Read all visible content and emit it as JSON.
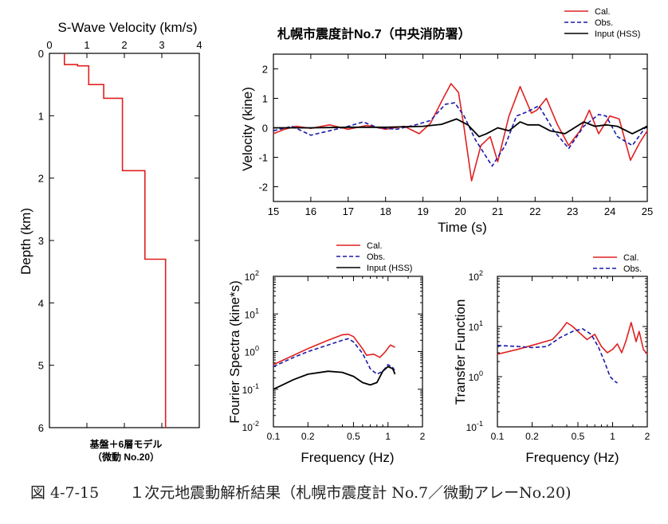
{
  "caption": "図 4-7-15　　１次元地震動解析結果（札幌市震度計 No.7／微動アレーNo.20)",
  "colors": {
    "cal": "#e02020",
    "obs": "#1a1aa8",
    "input": "#000000"
  },
  "chart_data": [
    {
      "id": "profile",
      "type": "line",
      "title": "S-Wave Velocity (km/s)",
      "xlabel": "",
      "ylabel": "Depth (km)",
      "xlim": [
        0,
        4
      ],
      "ylim": [
        0,
        6
      ],
      "xticks": [
        0,
        1,
        2,
        3,
        4
      ],
      "yticks": [
        0,
        1,
        2,
        3,
        4,
        5,
        6
      ],
      "note_line1": "基盤＋6層モデル",
      "note_line2": "（微動 No.20）",
      "series": [
        {
          "key": "profile",
          "points": [
            [
              0.4,
              0
            ],
            [
              0.4,
              0.18
            ],
            [
              0.75,
              0.18
            ],
            [
              0.75,
              0.2
            ],
            [
              1.05,
              0.2
            ],
            [
              1.05,
              0.5
            ],
            [
              1.45,
              0.5
            ],
            [
              1.45,
              0.72
            ],
            [
              1.95,
              0.72
            ],
            [
              1.95,
              1.88
            ],
            [
              2.55,
              1.88
            ],
            [
              2.55,
              3.3
            ],
            [
              3.1,
              3.3
            ],
            [
              3.1,
              6.0
            ]
          ]
        }
      ]
    },
    {
      "id": "velocity",
      "type": "line",
      "title": "札幌市震度計No.7（中央消防署）",
      "xlabel": "Time (s)",
      "ylabel": "Velocity (kine)",
      "xlim": [
        15,
        25
      ],
      "ylim": [
        -2.5,
        2.5
      ],
      "xticks": [
        15,
        16,
        17,
        18,
        19,
        20,
        21,
        22,
        23,
        24,
        25
      ],
      "yticks": [
        -2,
        -1,
        0,
        1,
        2
      ],
      "legend": [
        "Cal.",
        "Obs.",
        "Input (HSS)"
      ],
      "series": [
        {
          "key": "cal",
          "name": "Cal.",
          "points": [
            [
              15,
              -0.2
            ],
            [
              15.3,
              -0.05
            ],
            [
              15.6,
              0.05
            ],
            [
              16,
              -0.02
            ],
            [
              16.5,
              0.1
            ],
            [
              17,
              -0.05
            ],
            [
              17.5,
              0.08
            ],
            [
              18,
              -0.05
            ],
            [
              18.5,
              0.05
            ],
            [
              18.9,
              -0.2
            ],
            [
              19.2,
              0.15
            ],
            [
              19.5,
              0.9
            ],
            [
              19.75,
              1.5
            ],
            [
              19.95,
              1.2
            ],
            [
              20.1,
              0
            ],
            [
              20.3,
              -1.8
            ],
            [
              20.55,
              -0.6
            ],
            [
              20.8,
              -0.3
            ],
            [
              21,
              -1.15
            ],
            [
              21.3,
              0.4
            ],
            [
              21.6,
              1.4
            ],
            [
              21.9,
              0.5
            ],
            [
              22.05,
              0.6
            ],
            [
              22.3,
              1.0
            ],
            [
              22.6,
              0.1
            ],
            [
              22.9,
              -0.6
            ],
            [
              23.2,
              -0.1
            ],
            [
              23.45,
              0.6
            ],
            [
              23.7,
              -0.2
            ],
            [
              24.0,
              0.4
            ],
            [
              24.25,
              0.3
            ],
            [
              24.55,
              -1.1
            ],
            [
              24.8,
              -0.5
            ],
            [
              25,
              -0.1
            ]
          ]
        },
        {
          "key": "obs",
          "name": "Obs.",
          "points": [
            [
              15,
              -0.1
            ],
            [
              15.5,
              0.05
            ],
            [
              16,
              -0.25
            ],
            [
              16.5,
              -0.1
            ],
            [
              17.0,
              0.05
            ],
            [
              17.4,
              0.2
            ],
            [
              17.8,
              0.0
            ],
            [
              18.3,
              -0.05
            ],
            [
              18.8,
              0.1
            ],
            [
              19.2,
              0.25
            ],
            [
              19.6,
              0.8
            ],
            [
              19.85,
              0.85
            ],
            [
              20.1,
              0.4
            ],
            [
              20.4,
              -0.4
            ],
            [
              20.85,
              -1.3
            ],
            [
              21.2,
              -0.6
            ],
            [
              21.5,
              0.4
            ],
            [
              21.8,
              0.55
            ],
            [
              22.1,
              0.75
            ],
            [
              22.5,
              -0.1
            ],
            [
              22.9,
              -0.7
            ],
            [
              23.3,
              0.05
            ],
            [
              23.7,
              0.45
            ],
            [
              23.9,
              0.4
            ],
            [
              24.2,
              -0.3
            ],
            [
              24.6,
              -0.6
            ],
            [
              25,
              0.1
            ]
          ]
        },
        {
          "key": "input",
          "name": "Input (HSS)",
          "points": [
            [
              15,
              0.0
            ],
            [
              16,
              0.0
            ],
            [
              17,
              0.02
            ],
            [
              18,
              0.02
            ],
            [
              19,
              0.05
            ],
            [
              19.5,
              0.12
            ],
            [
              19.9,
              0.3
            ],
            [
              20.2,
              0.1
            ],
            [
              20.5,
              -0.3
            ],
            [
              20.7,
              -0.2
            ],
            [
              21.0,
              0.0
            ],
            [
              21.3,
              -0.1
            ],
            [
              21.6,
              0.2
            ],
            [
              21.8,
              0.1
            ],
            [
              22.1,
              0.1
            ],
            [
              22.4,
              -0.1
            ],
            [
              22.8,
              -0.2
            ],
            [
              23.3,
              0.2
            ],
            [
              23.6,
              0.05
            ],
            [
              23.9,
              0.1
            ],
            [
              24.2,
              0.05
            ],
            [
              24.6,
              -0.2
            ],
            [
              25,
              0.05
            ]
          ]
        }
      ]
    },
    {
      "id": "fourier",
      "type": "line",
      "title": "",
      "xlabel": "Frequency (Hz)",
      "ylabel": "Fourier Spectra (kine*s)",
      "xscale": "log",
      "yscale": "log",
      "xlim": [
        0.1,
        2
      ],
      "ylim": [
        0.01,
        100
      ],
      "xticks": [
        "0.1",
        "0.2",
        "0.5",
        "1",
        "2"
      ],
      "ytick_exponents": [
        "-2",
        "-1",
        "0",
        "1",
        "2"
      ],
      "legend": [
        "Cal.",
        "Obs.",
        "Input (HSS)"
      ],
      "series": [
        {
          "key": "cal",
          "name": "Cal.",
          "points": [
            [
              0.1,
              0.45
            ],
            [
              0.15,
              0.8
            ],
            [
              0.2,
              1.2
            ],
            [
              0.3,
              2.0
            ],
            [
              0.4,
              2.8
            ],
            [
              0.45,
              2.9
            ],
            [
              0.5,
              2.5
            ],
            [
              0.6,
              1.2
            ],
            [
              0.65,
              0.8
            ],
            [
              0.75,
              0.85
            ],
            [
              0.85,
              0.7
            ],
            [
              0.95,
              1.0
            ],
            [
              1.05,
              1.5
            ],
            [
              1.15,
              1.3
            ]
          ]
        },
        {
          "key": "obs",
          "name": "Obs.",
          "points": [
            [
              0.1,
              0.4
            ],
            [
              0.15,
              0.7
            ],
            [
              0.2,
              1.0
            ],
            [
              0.3,
              1.5
            ],
            [
              0.4,
              2.0
            ],
            [
              0.45,
              2.2
            ],
            [
              0.5,
              1.8
            ],
            [
              0.6,
              0.9
            ],
            [
              0.7,
              0.35
            ],
            [
              0.8,
              0.25
            ],
            [
              0.9,
              0.3
            ],
            [
              1.0,
              0.45
            ],
            [
              1.1,
              0.38
            ],
            [
              1.15,
              0.3
            ]
          ]
        },
        {
          "key": "input",
          "name": "Input (HSS)",
          "points": [
            [
              0.1,
              0.1
            ],
            [
              0.15,
              0.18
            ],
            [
              0.2,
              0.25
            ],
            [
              0.3,
              0.3
            ],
            [
              0.4,
              0.28
            ],
            [
              0.5,
              0.22
            ],
            [
              0.6,
              0.15
            ],
            [
              0.7,
              0.13
            ],
            [
              0.8,
              0.15
            ],
            [
              0.9,
              0.3
            ],
            [
              1.0,
              0.4
            ],
            [
              1.1,
              0.35
            ],
            [
              1.15,
              0.25
            ]
          ]
        }
      ]
    },
    {
      "id": "transfer",
      "type": "line",
      "title": "",
      "xlabel": "Frequency (Hz)",
      "ylabel": "Transfer Function",
      "xscale": "log",
      "yscale": "log",
      "xlim": [
        0.1,
        2
      ],
      "ylim": [
        0.1,
        100
      ],
      "xticks": [
        "0.1",
        "0.2",
        "0.5",
        "1",
        "2"
      ],
      "ytick_exponents": [
        "-1",
        "0",
        "1",
        "2"
      ],
      "legend": [
        "Cal.",
        "Obs."
      ],
      "series": [
        {
          "key": "cal",
          "name": "Cal.",
          "points": [
            [
              0.1,
              2.8
            ],
            [
              0.15,
              3.5
            ],
            [
              0.2,
              4.2
            ],
            [
              0.3,
              5.5
            ],
            [
              0.35,
              8.0
            ],
            [
              0.4,
              12.0
            ],
            [
              0.45,
              10.0
            ],
            [
              0.5,
              8.0
            ],
            [
              0.6,
              5.5
            ],
            [
              0.7,
              7.0
            ],
            [
              0.8,
              4.0
            ],
            [
              0.9,
              3.0
            ],
            [
              1.0,
              3.5
            ],
            [
              1.1,
              4.5
            ],
            [
              1.2,
              3.0
            ],
            [
              1.3,
              5.0
            ],
            [
              1.45,
              12.0
            ],
            [
              1.6,
              5.0
            ],
            [
              1.7,
              8.0
            ],
            [
              1.85,
              3.5
            ],
            [
              2.0,
              2.8
            ]
          ]
        },
        {
          "key": "obs",
          "name": "Obs.",
          "points": [
            [
              0.1,
              4.2
            ],
            [
              0.15,
              4.0
            ],
            [
              0.2,
              3.8
            ],
            [
              0.27,
              4.0
            ],
            [
              0.35,
              6.0
            ],
            [
              0.45,
              8.0
            ],
            [
              0.55,
              9.0
            ],
            [
              0.65,
              7.0
            ],
            [
              0.75,
              4.0
            ],
            [
              0.85,
              2.0
            ],
            [
              0.95,
              1.0
            ],
            [
              1.05,
              0.8
            ],
            [
              1.1,
              0.75
            ]
          ]
        }
      ]
    }
  ]
}
